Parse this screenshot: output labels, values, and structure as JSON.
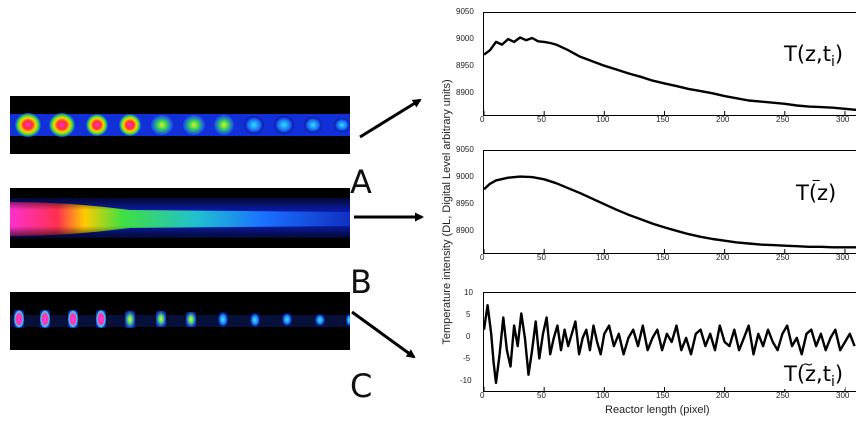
{
  "panels": [
    {
      "letter": "A",
      "label_main": "T(z,t",
      "label_sub": "i",
      "label_close": ")",
      "plot_type": "line",
      "yticks": [
        "9050",
        "9000",
        "8950",
        "8900"
      ]
    },
    {
      "letter": "B",
      "label_main": "T(z)",
      "label_accent": "‾",
      "plot_type": "line",
      "yticks": [
        "9050",
        "9000",
        "8950",
        "8900"
      ]
    },
    {
      "letter": "C",
      "label_main": "T(z,t",
      "label_sub": "i",
      "label_close": ")",
      "label_accent": "~",
      "plot_type": "line",
      "yticks": [
        "10",
        "5",
        "0",
        "-5",
        "-10"
      ]
    }
  ],
  "xticks": [
    "0",
    "50",
    "100",
    "150",
    "200",
    "250",
    "300"
  ],
  "ylabel": "Temperature intensity (DL, Digital Level arbitrary units)",
  "xlabel": "Reactor length (pixel)",
  "chart_data": [
    {
      "type": "line",
      "title": "",
      "xlabel": "",
      "ylabel": "",
      "xlim": [
        0,
        310
      ],
      "ylim": [
        8880,
        9050
      ],
      "series": [
        {
          "x": [
            0,
            5,
            10,
            15,
            20,
            25,
            30,
            35,
            40,
            45,
            50,
            55,
            60,
            70,
            80,
            90,
            100,
            110,
            120,
            130,
            140,
            150,
            160,
            170,
            180,
            190,
            200,
            210,
            220,
            230,
            240,
            250,
            260,
            270,
            280,
            290,
            300,
            310
          ],
          "y": [
            8982,
            8990,
            9005,
            9000,
            9010,
            9005,
            9013,
            9008,
            9012,
            9006,
            9005,
            9003,
            9000,
            8990,
            8978,
            8970,
            8962,
            8955,
            8948,
            8942,
            8935,
            8930,
            8925,
            8920,
            8916,
            8912,
            8907,
            8903,
            8899,
            8897,
            8895,
            8893,
            8890,
            8888,
            8887,
            8886,
            8884,
            8882
          ]
        }
      ]
    },
    {
      "type": "line",
      "title": "",
      "xlabel": "",
      "ylabel": "",
      "xlim": [
        0,
        310
      ],
      "ylim": [
        8880,
        9050
      ],
      "series": [
        {
          "x": [
            0,
            5,
            10,
            20,
            30,
            40,
            50,
            60,
            70,
            80,
            90,
            100,
            110,
            120,
            130,
            140,
            150,
            160,
            170,
            180,
            190,
            200,
            210,
            220,
            230,
            240,
            250,
            260,
            270,
            280,
            290,
            300,
            310
          ],
          "y": [
            8988,
            8998,
            9004,
            9009,
            9011,
            9010,
            9006,
            8999,
            8990,
            8981,
            8971,
            8961,
            8951,
            8942,
            8934,
            8926,
            8919,
            8913,
            8907,
            8902,
            8898,
            8895,
            8892,
            8890,
            8888,
            8887,
            8886,
            8885,
            8884,
            8884,
            8883,
            8883,
            8883
          ]
        }
      ]
    },
    {
      "type": "line",
      "title": "",
      "xlabel": "",
      "ylabel": "",
      "xlim": [
        0,
        310
      ],
      "ylim": [
        -11,
        11
      ],
      "series": [
        {
          "x": [
            0,
            3,
            6,
            8,
            10,
            13,
            16,
            19,
            22,
            25,
            28,
            31,
            34,
            37,
            40,
            43,
            46,
            49,
            52,
            55,
            58,
            61,
            64,
            67,
            70,
            73,
            76,
            79,
            82,
            85,
            88,
            91,
            94,
            97,
            100,
            104,
            108,
            112,
            116,
            120,
            124,
            128,
            132,
            136,
            140,
            144,
            148,
            152,
            156,
            160,
            164,
            168,
            172,
            176,
            180,
            184,
            188,
            192,
            196,
            200,
            204,
            208,
            212,
            216,
            220,
            224,
            228,
            232,
            236,
            240,
            244,
            248,
            252,
            256,
            260,
            264,
            268,
            272,
            276,
            280,
            284,
            288,
            292,
            296,
            300,
            304,
            308
          ],
          "y": [
            3,
            9,
            2,
            -5,
            -10,
            -3,
            6,
            -2,
            -6,
            4,
            -1,
            7,
            1,
            -8,
            -2,
            5,
            -4,
            2,
            6,
            -3,
            1,
            4,
            -2,
            3,
            -1,
            2,
            5,
            -3,
            1,
            3,
            -2,
            4,
            0,
            -3,
            2,
            4,
            -1,
            2,
            -3,
            1,
            3,
            -1,
            4,
            -2,
            1,
            3,
            -2,
            2,
            0,
            4,
            -2,
            1,
            -3,
            2,
            3,
            -1,
            2,
            -2,
            4,
            0,
            -1,
            3,
            -2,
            1,
            4,
            -3,
            2,
            -1,
            3,
            0,
            -2,
            2,
            4,
            -1,
            1,
            -3,
            2,
            3,
            -1,
            2,
            -2,
            1,
            3,
            -2,
            0,
            2,
            -1
          ]
        }
      ]
    }
  ]
}
